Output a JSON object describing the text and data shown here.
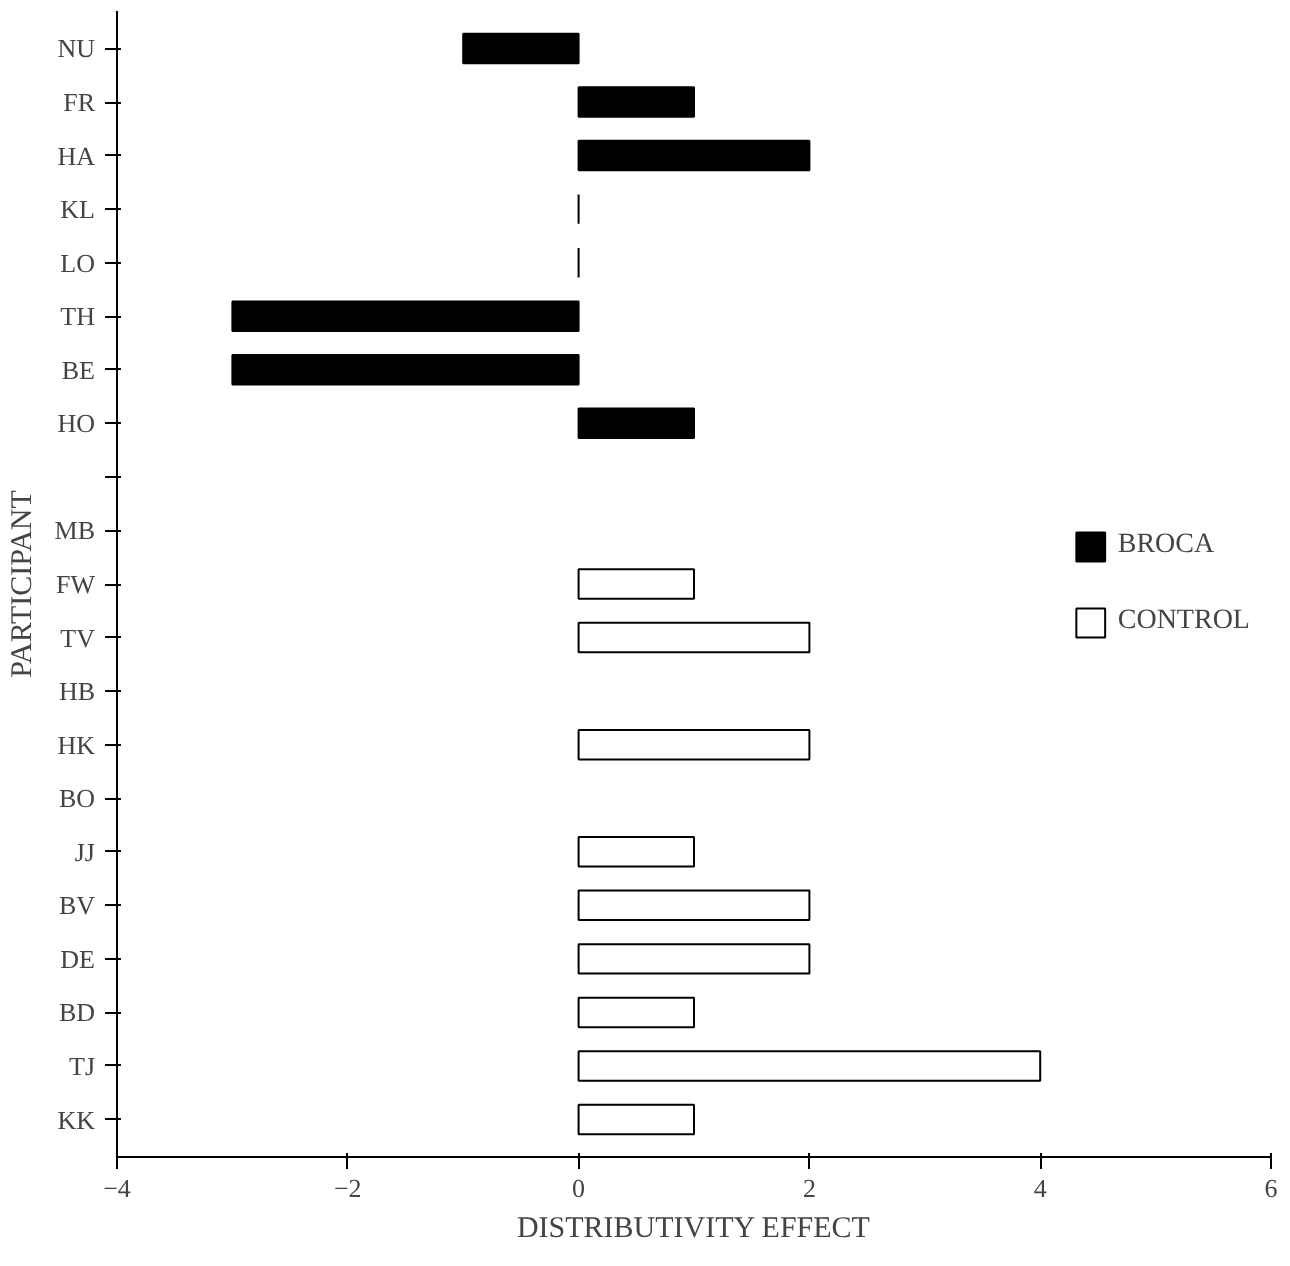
{
  "chart_data": {
    "type": "bar",
    "orientation": "horizontal",
    "xlabel": "DISTRIBUTIVITY EFFECT",
    "ylabel": "PARTICIPANT",
    "categories": [
      "NU",
      "FR",
      "HA",
      "KL",
      "LO",
      "TH",
      "BE",
      "HO",
      null,
      "MB",
      "FW",
      "TV",
      "HB",
      "HK",
      "BO",
      "JJ",
      "BV",
      "DE",
      "BD",
      "TJ",
      "KK"
    ],
    "series": [
      {
        "name": "BROCA",
        "color": "#000000",
        "values": [
          -1,
          1,
          2,
          0,
          0,
          -3,
          -3,
          1,
          null,
          null,
          null,
          null,
          null,
          null,
          null,
          null,
          null,
          null,
          null,
          null,
          null
        ]
      },
      {
        "name": "CONTROL",
        "color": "#ffffff",
        "values": [
          null,
          null,
          null,
          null,
          null,
          null,
          null,
          null,
          null,
          0,
          1,
          2,
          0,
          2,
          0,
          1,
          2,
          2,
          1,
          4,
          1
        ]
      }
    ],
    "xlim": [
      -4,
      6
    ],
    "xticks": [
      -4,
      -2,
      0,
      2,
      4,
      6
    ],
    "grid": false,
    "legend": "right"
  }
}
